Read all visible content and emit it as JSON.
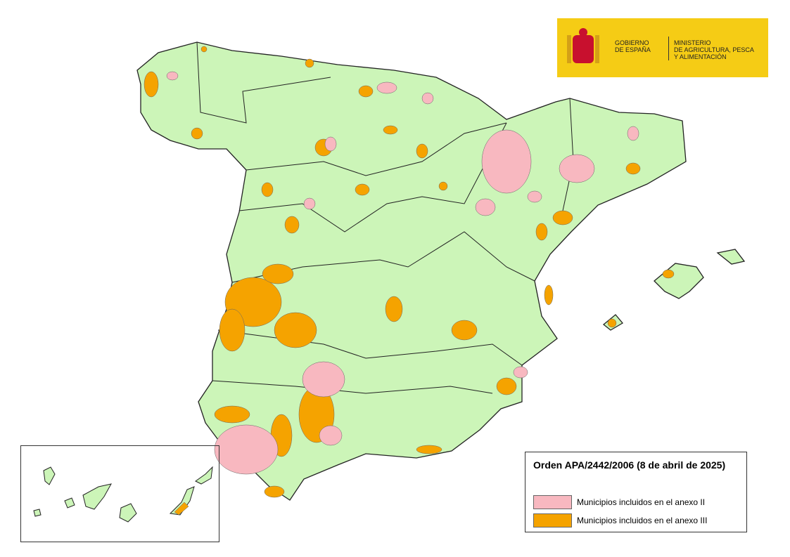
{
  "header": {
    "logo": {
      "gobierno": [
        "GOBIERNO",
        "DE ESPAÑA"
      ],
      "ministerio": [
        "MINISTERIO",
        "DE AGRICULTURA, PESCA",
        "Y ALIMENTACIÓN"
      ]
    }
  },
  "legend": {
    "title": "Orden APA/2442/2006 (8 de abril de 2025)",
    "items": [
      {
        "label": "Municipios incluidos en el anexo II",
        "color": "#f8b8c0"
      },
      {
        "label": "Municipios incluidos en el anexo III",
        "color": "#f5a300"
      }
    ]
  }
}
